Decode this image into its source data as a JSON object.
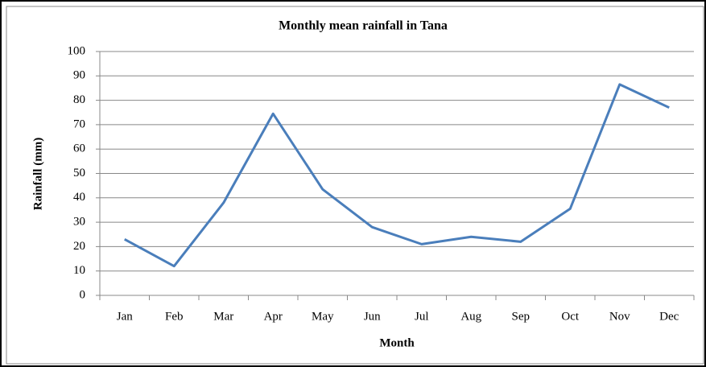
{
  "chart_data": {
    "type": "line",
    "title": "Monthly mean rainfall in Tana",
    "x_label": "Month",
    "y_label": "Rainfall (mm)",
    "categories": [
      "Jan",
      "Feb",
      "Mar",
      "Apr",
      "May",
      "Jun",
      "Jul",
      "Aug",
      "Sep",
      "Oct",
      "Nov",
      "Dec"
    ],
    "values": [
      23,
      12,
      38,
      74.5,
      43.5,
      28,
      21,
      24,
      22,
      35.5,
      86.5,
      77
    ],
    "color": "#4a7ebb",
    "ylim": [
      0,
      100
    ],
    "yticks": [
      0,
      10,
      20,
      30,
      40,
      50,
      60,
      70,
      80,
      90,
      100
    ],
    "grid": true
  }
}
